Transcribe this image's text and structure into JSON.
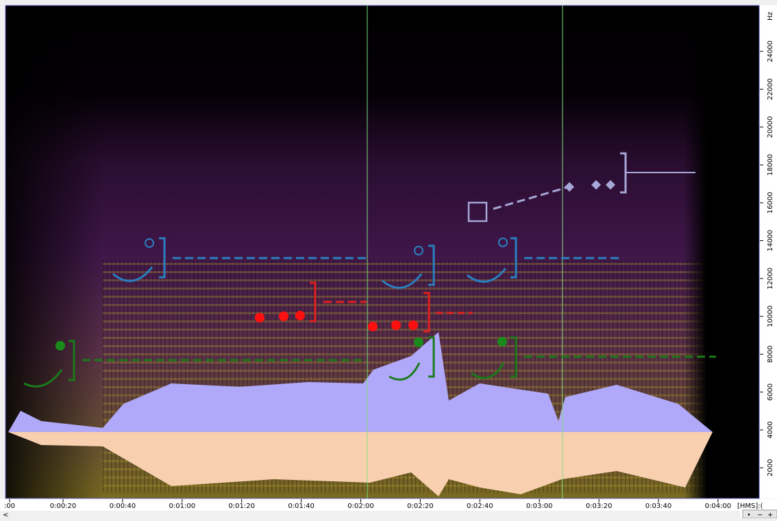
{
  "vertical_axis": {
    "unit": "Hz",
    "labels": [
      "24000",
      "22000",
      "20000",
      "18000",
      "16000",
      "14000",
      "12000",
      "10000",
      "8000",
      "6000",
      "4000",
      "2000"
    ]
  },
  "time_axis": {
    "labels": [
      ":00",
      "0:00:20",
      "0:00:40",
      "0:01:00",
      "0:01:20",
      "0:01:40",
      "0:02:00",
      "0:02:20",
      "0:02:40",
      "0:03:00",
      "0:03:20",
      "0:03:40",
      "0:04:00"
    ],
    "format": "[HMS]:("
  }
}
